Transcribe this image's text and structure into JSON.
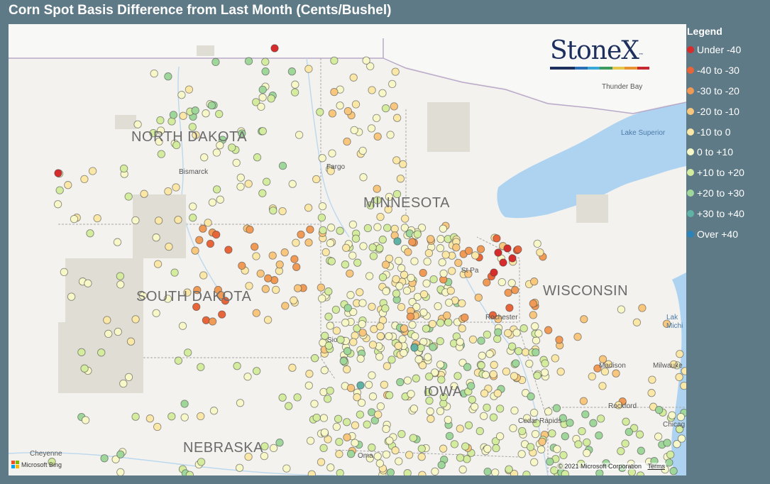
{
  "title": "Corn Spot Basis Difference from Last Month (Cents/Bushel)",
  "legend": {
    "title": "Legend",
    "items": [
      {
        "label": "Under -40",
        "color": "#d62c2c"
      },
      {
        "label": "-40 to -30",
        "color": "#e8653a"
      },
      {
        "label": "-30 to -20",
        "color": "#f09a55"
      },
      {
        "label": "-20 to -10",
        "color": "#f8c77d"
      },
      {
        "label": "-10 to 0",
        "color": "#fbe7a6"
      },
      {
        "label": "0 to +10",
        "color": "#f7f7c8"
      },
      {
        "label": "+10 to +20",
        "color": "#d4ec9e"
      },
      {
        "label": "+20 to +30",
        "color": "#9fd79b"
      },
      {
        "label": "+30 to +40",
        "color": "#5fb2a4"
      },
      {
        "label": "Over +40",
        "color": "#2b83ba"
      }
    ]
  },
  "logo": {
    "text": "StoneX",
    "tm": "™",
    "bar_colors": [
      "#1d2f5c",
      "#1d2f5c",
      "#2a6fb5",
      "#3aa7d9",
      "#3c9a5f",
      "#e3c64a",
      "#e8932f",
      "#c8292f"
    ]
  },
  "map_labels": {
    "north_dakota": "NORTH DAKOTA",
    "south_dakota": "SOUTH DAKOTA",
    "minnesota": "MINNESOTA",
    "wisconsin": "WISCONSIN",
    "iowa": "IOWA",
    "nebraska": "NEBRASKA",
    "fargo": "Fargo",
    "bismarck": "Bismarck",
    "thunder_bay": "Thunder Bay",
    "lake_superior": "Lake Superior",
    "st_paul": "St Pa",
    "rochester": "Rochester",
    "madison": "Madison",
    "milwaukee": "Milwauke",
    "rockford": "Rockford",
    "cedar_rapids": "Cedar Rapids",
    "chicago": "Chicag",
    "lake_michigan": "Lak Michi",
    "sioux_falls": "Sio",
    "omaha": "Oma",
    "cheyenne": "Cheyenne"
  },
  "attribution": {
    "bing": "Microsoft Bing",
    "copyright": "© 2021 Microsoft Corporation",
    "terms": "Terms"
  },
  "map_data": {
    "type": "bubble-map",
    "notable_points": [
      {
        "region": "far northeast North Dakota",
        "category": "Under -40"
      },
      {
        "region": "southeast Minnesota cluster",
        "category": "Under -40"
      },
      {
        "region": "western North Dakota",
        "category": "+30 to +40"
      },
      {
        "region": "east-central Minnesota",
        "category": "+30 to +40"
      },
      {
        "region": "northeast Iowa / southeast Minnesota",
        "category": "+30 to +40"
      }
    ],
    "regional_pattern": [
      {
        "region": "North Dakota",
        "dominant_category": "+10 to +20"
      },
      {
        "region": "South Dakota (central/east)",
        "dominant_category": "-30 to -20"
      },
      {
        "region": "Minnesota (south)",
        "dominant_category": "0 to +10"
      },
      {
        "region": "Iowa",
        "dominant_category": "0 to +10"
      },
      {
        "region": "Wisconsin",
        "dominant_category": "-20 to -10"
      },
      {
        "region": "Northern Illinois",
        "dominant_category": "+10 to +20"
      }
    ]
  }
}
